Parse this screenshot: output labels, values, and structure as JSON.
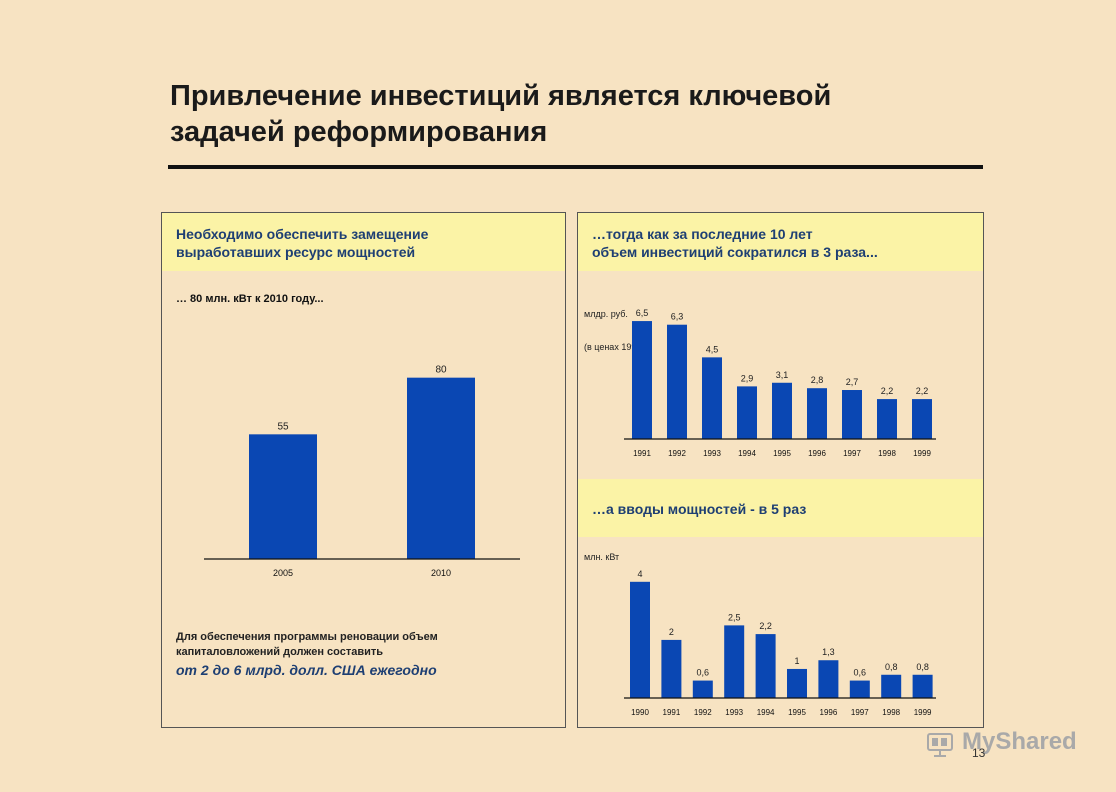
{
  "title_line1": "Привлечение инвестиций является ключевой",
  "title_line2": "задачей реформирования",
  "left_panel": {
    "band_line1": "Необходимо обеспечить замещение",
    "band_line2": "выработавших ресурс мощностей",
    "subhead": "… 80 млн. кВт к 2010 году...",
    "footer_line1": "Для обеспечения программы реновации объем",
    "footer_line2": "капиталовложений должен составить",
    "footer_highlight": "от 2 до 6 млрд. долл. США ежегодно"
  },
  "right_top": {
    "band_line1": "…тогда как за последние 10 лет",
    "band_line2": "объем инвестиций сократился в 3 раза...",
    "unit_line1": "млдр. руб.",
    "unit_line2": "(в ценах 1991 г.)"
  },
  "right_bottom": {
    "band_line1": "…а вводы мощностей - в 5 раз",
    "unit_line1": "млн. кВт"
  },
  "chart_data": [
    {
      "type": "bar",
      "categories": [
        "2005",
        "2010"
      ],
      "values": [
        55,
        80
      ],
      "value_labels": [
        "55",
        "80"
      ],
      "ylim": [
        0,
        90
      ]
    },
    {
      "type": "bar",
      "categories": [
        "1991",
        "1992",
        "1993",
        "1994",
        "1995",
        "1996",
        "1997",
        "1998",
        "1999"
      ],
      "values": [
        6.5,
        6.3,
        4.5,
        2.9,
        3.1,
        2.8,
        2.7,
        2.2,
        2.2
      ],
      "value_labels": [
        "6,5",
        "6,3",
        "4,5",
        "2,9",
        "3,1",
        "2,8",
        "2,7",
        "2,2",
        "2,2"
      ],
      "ylabel": "млдр. руб. (в ценах 1991 г.)",
      "ylim": [
        0,
        7
      ]
    },
    {
      "type": "bar",
      "categories": [
        "1990",
        "1991",
        "1992",
        "1993",
        "1994",
        "1995",
        "1996",
        "1997",
        "1998",
        "1999"
      ],
      "values": [
        4,
        2,
        0.6,
        2.5,
        2.2,
        1,
        1.3,
        0.6,
        0.8,
        0.8
      ],
      "value_labels": [
        "4",
        "2",
        "0,6",
        "2,5",
        "2,2",
        "1",
        "1,3",
        "0,6",
        "0,8",
        "0,8"
      ],
      "ylabel": "млн. кВт",
      "ylim": [
        0,
        4.2
      ]
    }
  ],
  "colors": {
    "bar": "#0a47b3",
    "band": "#fbf3a6",
    "accent_text": "#1e3f73",
    "background": "#f7e3c2"
  },
  "page_number": "13",
  "watermark": "MyShared"
}
